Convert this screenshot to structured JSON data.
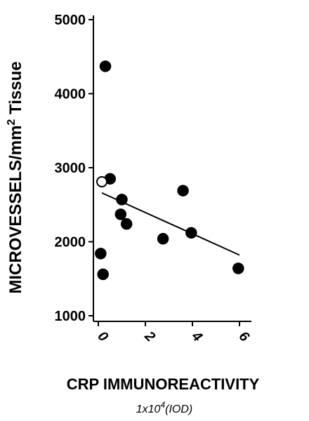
{
  "chart_data": {
    "type": "scatter",
    "title": "",
    "ylabel_parts": [
      "MICROVESSELS/mm",
      "2",
      " Tissue"
    ],
    "xlabel": "CRP IMMUNOREACTIVITY",
    "xlabel_sub_parts": [
      "1x10",
      "4",
      "(IOD)"
    ],
    "xlim": [
      0,
      6.5
    ],
    "ylim": [
      1000,
      5000
    ],
    "xticks": [
      0,
      2,
      4,
      6
    ],
    "yticks": [
      1000,
      2000,
      3000,
      4000,
      5000
    ],
    "series": [
      {
        "marker": "filled",
        "points": [
          {
            "x": 0.3,
            "y": 4370
          },
          {
            "x": 0.5,
            "y": 2850
          },
          {
            "x": 1.0,
            "y": 2570
          },
          {
            "x": 0.95,
            "y": 2370
          },
          {
            "x": 1.2,
            "y": 2240
          },
          {
            "x": 0.1,
            "y": 1840
          },
          {
            "x": 0.2,
            "y": 1560
          },
          {
            "x": 2.75,
            "y": 2040
          },
          {
            "x": 3.6,
            "y": 2690
          },
          {
            "x": 3.95,
            "y": 2120
          },
          {
            "x": 5.95,
            "y": 1640
          }
        ]
      },
      {
        "marker": "open",
        "points": [
          {
            "x": 0.15,
            "y": 2810
          }
        ]
      }
    ],
    "trend_line": {
      "x": [
        0.15,
        6.0
      ],
      "y": [
        2660,
        1820
      ]
    },
    "grid": false,
    "legend": "none"
  }
}
